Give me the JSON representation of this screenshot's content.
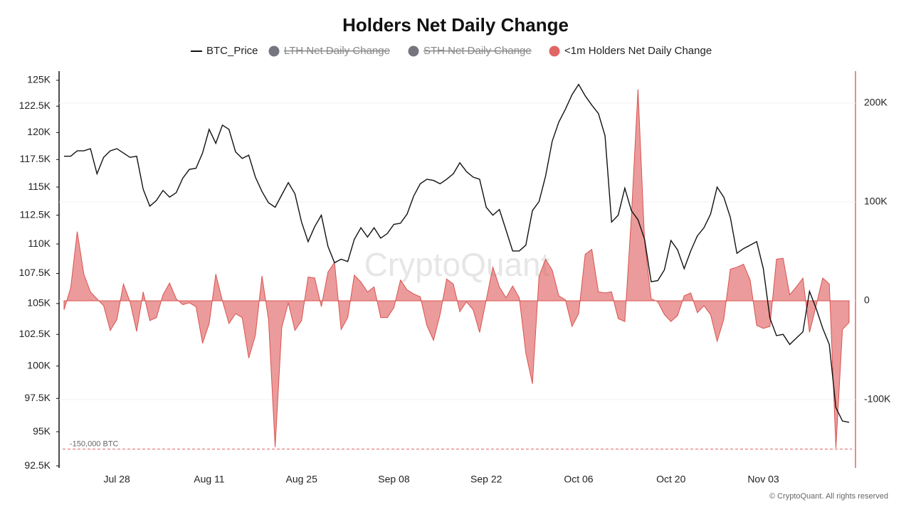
{
  "chart_data": {
    "type": "line",
    "title": "Holders Net Daily Change",
    "categories": [
      null,
      null,
      null,
      null,
      null,
      null,
      null,
      null,
      "Jul 28",
      null,
      null,
      null,
      null,
      null,
      null,
      null,
      null,
      null,
      null,
      null,
      null,
      null,
      "Aug 11",
      null,
      null,
      null,
      null,
      null,
      null,
      null,
      null,
      null,
      null,
      null,
      null,
      null,
      "Aug 25",
      null,
      null,
      null,
      null,
      null,
      null,
      null,
      null,
      null,
      null,
      null,
      null,
      null,
      "Sep 08",
      null,
      null,
      null,
      null,
      null,
      null,
      null,
      null,
      null,
      null,
      null,
      null,
      null,
      "Sep 22",
      null,
      null,
      null,
      null,
      null,
      null,
      null,
      null,
      null,
      null,
      null,
      null,
      null,
      "Oct 06",
      null,
      null,
      null,
      null,
      null,
      null,
      null,
      null,
      null,
      null,
      null,
      null,
      null,
      "Oct 20",
      null,
      null,
      null,
      null,
      null,
      null,
      null,
      null,
      null,
      null,
      null,
      null,
      null,
      "Nov 03",
      null,
      null,
      null,
      null,
      null,
      null,
      null,
      null,
      null,
      null,
      null,
      null,
      null
    ],
    "series": [
      {
        "name": "BTC_Price",
        "color": "#111111",
        "style": "line",
        "values": [
          117800,
          117800,
          118300,
          118300,
          118500,
          116200,
          117700,
          118300,
          118500,
          118100,
          117700,
          117800,
          114800,
          113300,
          113800,
          114700,
          114100,
          114500,
          115800,
          116600,
          116700,
          118100,
          120300,
          119000,
          120700,
          120300,
          118200,
          117600,
          117900,
          115900,
          114600,
          113600,
          113200,
          114300,
          115400,
          114400,
          111900,
          110200,
          111500,
          112500,
          109800,
          108400,
          108700,
          108500,
          110400,
          111400,
          110600,
          111400,
          110500,
          110900,
          111700,
          111800,
          112600,
          114200,
          115300,
          115700,
          115600,
          115300,
          115700,
          116200,
          117200,
          116400,
          115900,
          115700,
          113200,
          112500,
          113000,
          111200,
          109400,
          109400,
          109900,
          112900,
          113700,
          116000,
          119200,
          121000,
          122200,
          123600,
          124600,
          123500,
          122600,
          121800,
          119700,
          111900,
          112500,
          114900,
          112900,
          112100,
          110400,
          106800,
          106900,
          107800,
          110300,
          109500,
          107900,
          109400,
          110700,
          111400,
          112600,
          115000,
          114100,
          112300,
          109200,
          109600,
          109900,
          110200,
          107900,
          103800,
          102400,
          102500,
          101700,
          102200,
          102700,
          106000,
          104600,
          103000,
          101700,
          96800,
          95800,
          95700
        ]
      },
      {
        "name": "<1m Holders Net Daily Change",
        "color": "#e06666",
        "style": "area",
        "axis": "y2",
        "values": [
          -9000,
          13000,
          70000,
          27000,
          9000,
          2000,
          -5000,
          -30000,
          -19000,
          17000,
          -1000,
          -31000,
          9000,
          -20000,
          -17000,
          6000,
          18000,
          2000,
          -4000,
          -2000,
          -6000,
          -43000,
          -23000,
          27000,
          0,
          -23000,
          -13000,
          -17000,
          -58000,
          -35000,
          25000,
          -19000,
          -148000,
          -27000,
          -2000,
          -30000,
          -20000,
          24000,
          23000,
          -6000,
          29000,
          39000,
          -29000,
          -17000,
          26000,
          19000,
          9000,
          14000,
          -17000,
          -17000,
          -7000,
          21000,
          11000,
          7000,
          4000,
          -25000,
          -40000,
          -14000,
          22000,
          17000,
          -11000,
          -1000,
          -9000,
          -32000,
          1000,
          34000,
          14000,
          3000,
          15000,
          3000,
          -53000,
          -84000,
          25000,
          42000,
          31000,
          5000,
          1000,
          -26000,
          -13000,
          47000,
          52000,
          9000,
          8000,
          9000,
          -18000,
          -21000,
          85000,
          214000,
          60000,
          2000,
          -1000,
          -14000,
          -21000,
          -15000,
          5000,
          8000,
          -12000,
          -5000,
          -14000,
          -41000,
          -19000,
          32000,
          34000,
          37000,
          21000,
          -25000,
          -28000,
          -26000,
          42000,
          43000,
          6000,
          14000,
          23000,
          -32000,
          -5000,
          23000,
          17000,
          -149000,
          -29000,
          -22000
        ]
      }
    ],
    "hidden_series": [
      {
        "name": "LTH Net Daily Change",
        "color": "#75757f"
      },
      {
        "name": "STH Net Daily Change",
        "color": "#75757f"
      }
    ],
    "ylog": true,
    "ylim": [
      92350,
      125900
    ],
    "yticks": [
      {
        "value": 92500,
        "label": "92.5K"
      },
      {
        "value": 95000,
        "label": "95K"
      },
      {
        "value": 97500,
        "label": "97.5K"
      },
      {
        "value": 100000,
        "label": "100K"
      },
      {
        "value": 102500,
        "label": "102.5K"
      },
      {
        "value": 105000,
        "label": "105K"
      },
      {
        "value": 107500,
        "label": "107.5K"
      },
      {
        "value": 110000,
        "label": "110K"
      },
      {
        "value": 112500,
        "label": "112.5K"
      },
      {
        "value": 115000,
        "label": "115K"
      },
      {
        "value": 117500,
        "label": "117.5K"
      },
      {
        "value": 120000,
        "label": "120K"
      },
      {
        "value": 122500,
        "label": "122.5K"
      },
      {
        "value": 125000,
        "label": "125K"
      }
    ],
    "y2lim": [
      -169100,
      232400
    ],
    "y2ticks": [
      {
        "value": -100000,
        "label": "-100K"
      },
      0,
      {
        "value": 100000,
        "label": "100K"
      },
      {
        "value": 200000,
        "label": "200K"
      }
    ],
    "grid": "y2",
    "annotations": [
      {
        "label": "-150,000 BTC",
        "value": -150000,
        "axis": "y2",
        "color": "#e06666"
      }
    ],
    "watermark": "CryptoQuant",
    "credit": "© CryptoQuant. All rights reserved"
  }
}
